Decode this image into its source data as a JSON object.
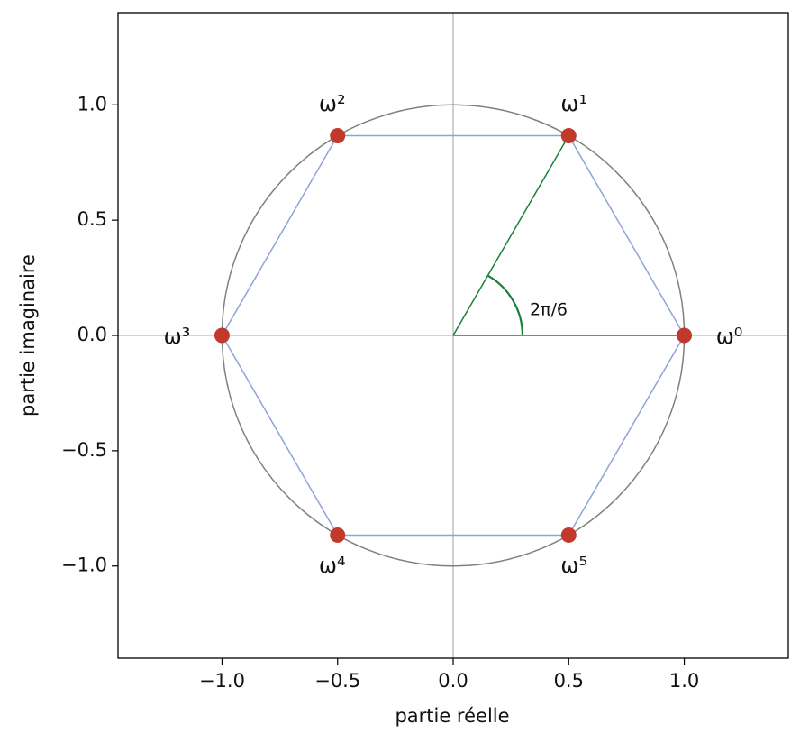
{
  "chart_data": {
    "type": "scatter",
    "x_label": "partie réelle",
    "y_label": "partie imaginaire",
    "x": [
      1,
      0.5,
      -0.5,
      -1,
      -0.5,
      0.5
    ],
    "values": [
      0,
      0.866,
      0.866,
      0,
      -0.866,
      -0.866
    ],
    "point_labels": [
      "ω⁰",
      "ω¹",
      "ω²",
      "ω³",
      "ω⁴",
      "ω⁵"
    ],
    "color": "#c0392b",
    "polygon_color": "#8fa3d8",
    "unit_circle": {
      "radius": 1,
      "color": "#808080"
    },
    "angle": {
      "label": "2π/6",
      "radius": 0.3,
      "color": "#1a7f3c"
    },
    "zero_lines": true,
    "xlim": [
      -1.45,
      1.45
    ],
    "ylim": [
      -1.4,
      1.4
    ],
    "xticks": [
      {
        "value": -1,
        "label": "−1.0"
      },
      {
        "value": -0.5,
        "label": "−0.5"
      },
      {
        "value": 0,
        "label": "0.0"
      },
      0.5,
      {
        "value": 1,
        "label": "1.0"
      }
    ],
    "yticks": [
      {
        "value": -1,
        "label": "−1.0"
      },
      {
        "value": -0.5,
        "label": "−0.5"
      },
      {
        "value": 0,
        "label": "0.0"
      },
      0.5,
      {
        "value": 1,
        "label": "1.0"
      }
    ]
  }
}
